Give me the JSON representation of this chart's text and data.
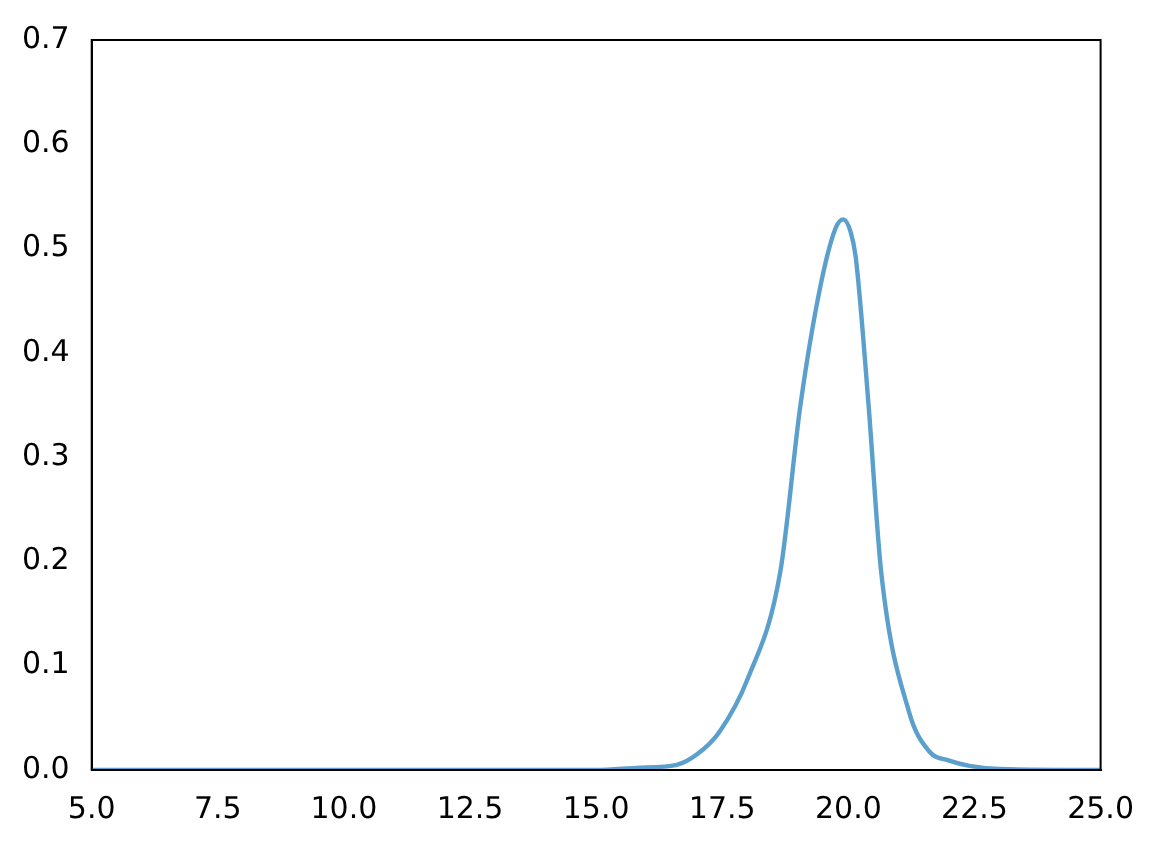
{
  "chart_data": {
    "type": "line",
    "x": [
      5,
      10,
      15,
      15.8,
      16.6,
      17.0,
      17.45,
      18.0,
      18.65,
      19.05,
      19.45,
      19.75,
      19.9,
      20.05,
      20.15,
      20.4,
      20.65,
      21.2,
      21.6,
      22.0,
      22.4,
      23.0,
      25
    ],
    "series": [
      {
        "color": "#5ba0cc",
        "values": [
          0,
          0,
          0,
          0.002,
          0.005,
          0.015,
          0.037,
          0.087,
          0.19,
          0.35,
          0.465,
          0.52,
          0.528,
          0.515,
          0.49,
          0.35,
          0.19,
          0.056,
          0.018,
          0.009,
          0.004,
          0.001,
          0
        ]
      }
    ],
    "xlim": [
      5,
      25
    ],
    "xticks": [
      {
        "value": 5,
        "label": "5.0"
      },
      {
        "value": 7.5,
        "label": "7.5"
      },
      {
        "value": 10,
        "label": "10.0"
      },
      {
        "value": 12.5,
        "label": "12.5"
      },
      {
        "value": 15,
        "label": "15.0"
      },
      {
        "value": 17.5,
        "label": "17.5"
      },
      {
        "value": 20,
        "label": "20.0"
      },
      {
        "value": 22.5,
        "label": "22.5"
      },
      {
        "value": 25,
        "label": "25.0"
      }
    ],
    "ylim": [
      0,
      0.7
    ],
    "yticks": [
      {
        "value": 0,
        "label": "0.0"
      },
      0.1,
      0.2,
      0.3,
      0.4,
      0.5,
      0.6,
      0.7
    ],
    "grid": false,
    "legend": false,
    "marker": "none",
    "line_style": "solid"
  }
}
